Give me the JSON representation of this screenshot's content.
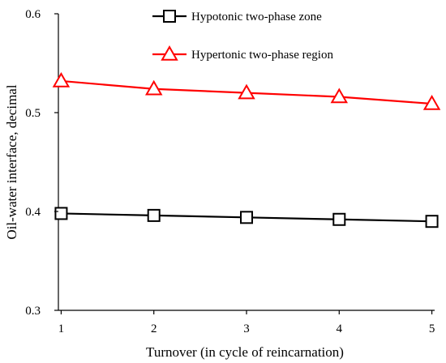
{
  "chart_data": {
    "type": "line",
    "title": "",
    "xlabel": "Turnover (in cycle of reincarnation)",
    "ylabel": "Oil-water interface, decimal",
    "x": [
      1,
      2,
      3,
      4,
      5
    ],
    "x_ticks": [
      "1",
      "2",
      "3",
      "4",
      "5"
    ],
    "y_ticks": [
      "0.3",
      "0.4",
      "0.5",
      "0.6"
    ],
    "ylim": [
      0.3,
      0.6
    ],
    "grid": false,
    "legend_position": "top-right",
    "series": [
      {
        "name": "Hypotonic two-phase zone",
        "marker": "square",
        "color": "#000000",
        "values": [
          0.398,
          0.396,
          0.394,
          0.392,
          0.39
        ]
      },
      {
        "name": "Hypertonic two-phase region",
        "marker": "triangle",
        "color": "#ff0000",
        "values": [
          0.532,
          0.524,
          0.52,
          0.516,
          0.509
        ]
      }
    ]
  }
}
